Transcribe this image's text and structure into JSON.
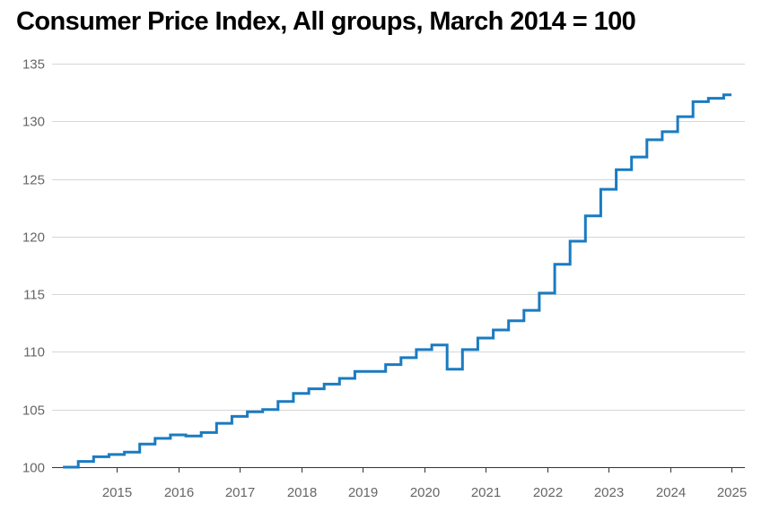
{
  "chart_data": {
    "type": "line",
    "step": true,
    "title": "Consumer Price Index, All groups, March 2014 = 100",
    "xlabel": "",
    "ylabel": "",
    "xlim": [
      2014.25,
      2025.0
    ],
    "ylim": [
      100,
      135
    ],
    "y_ticks": [
      100,
      105,
      110,
      115,
      120,
      125,
      130,
      135
    ],
    "x_ticks": [
      2015,
      2016,
      2017,
      2018,
      2019,
      2020,
      2021,
      2022,
      2023,
      2024,
      2025
    ],
    "x_tick_labels": [
      "2015",
      "2016",
      "2017",
      "2018",
      "2019",
      "2020",
      "2021",
      "2022",
      "2023",
      "2024",
      "2025"
    ],
    "grid": "horizontal",
    "legend": "none",
    "series": [
      {
        "color": "#1a7bc1",
        "x": [
          2014.25,
          2014.5,
          2014.75,
          2015.0,
          2015.25,
          2015.5,
          2015.75,
          2016.0,
          2016.25,
          2016.5,
          2016.75,
          2017.0,
          2017.25,
          2017.5,
          2017.75,
          2018.0,
          2018.25,
          2018.5,
          2018.75,
          2019.0,
          2019.25,
          2019.5,
          2019.75,
          2020.0,
          2020.25,
          2020.5,
          2020.75,
          2021.0,
          2021.25,
          2021.5,
          2021.75,
          2022.0,
          2022.25,
          2022.5,
          2022.75,
          2023.0,
          2023.25,
          2023.5,
          2023.75,
          2024.0,
          2024.25,
          2024.5,
          2024.75,
          2025.0
        ],
        "values": [
          100.0,
          100.5,
          100.9,
          101.1,
          101.3,
          102.0,
          102.5,
          102.8,
          102.7,
          103.0,
          103.8,
          104.4,
          104.8,
          105.0,
          105.7,
          106.4,
          106.8,
          107.2,
          107.7,
          108.3,
          108.3,
          108.9,
          109.5,
          110.2,
          110.6,
          108.5,
          110.2,
          111.2,
          111.9,
          112.7,
          113.6,
          115.1,
          117.6,
          119.6,
          121.8,
          124.1,
          125.8,
          126.9,
          128.4,
          129.1,
          130.4,
          131.7,
          132.0,
          132.3
        ]
      }
    ]
  }
}
